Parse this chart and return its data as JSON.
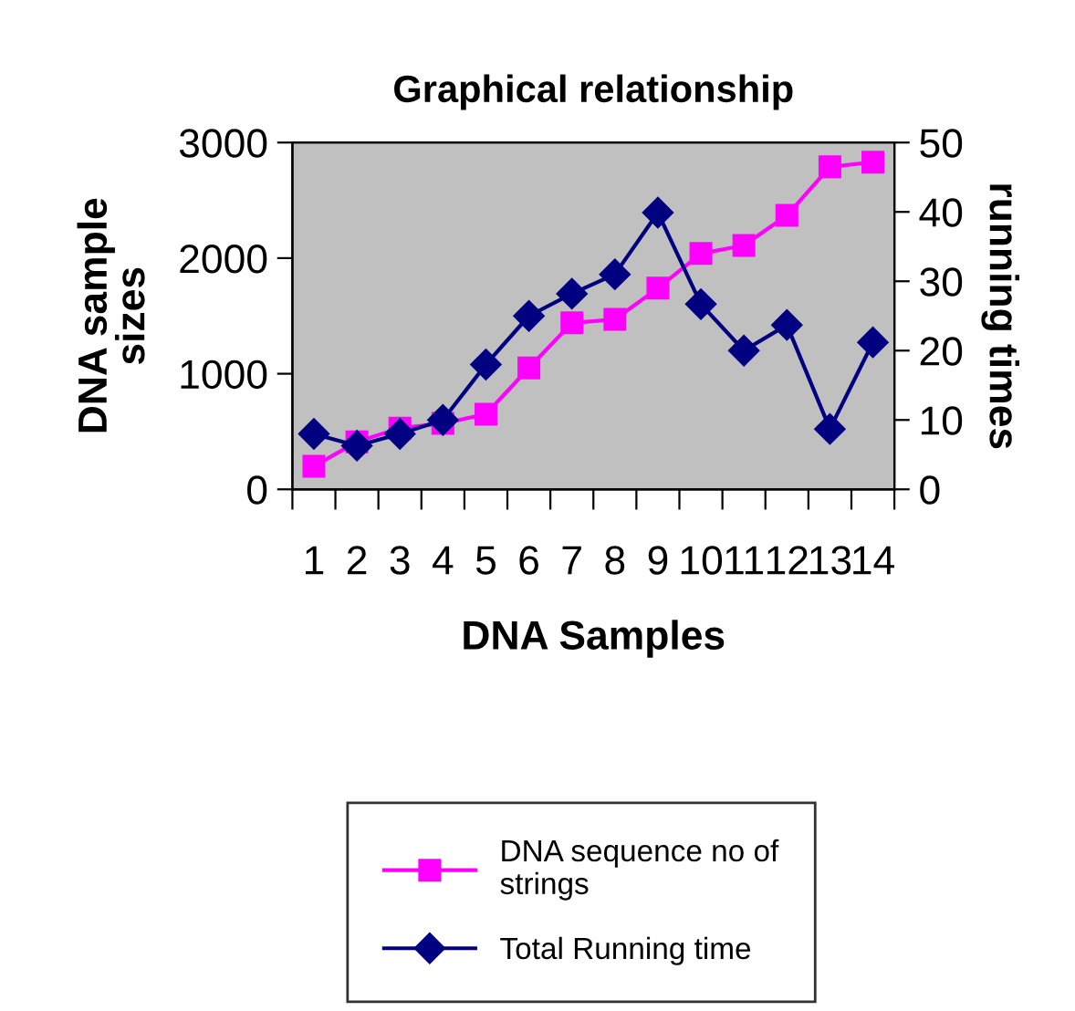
{
  "chart_data": {
    "type": "line",
    "title": "Graphical relationship",
    "xlabel": "DNA Samples",
    "ylabel": "DNA sample\nsizes",
    "y2label": "running times",
    "categories": [
      "1",
      "2",
      "3",
      "4",
      "5",
      "6",
      "7",
      "8",
      "9",
      "10",
      "11",
      "12",
      "13",
      "14"
    ],
    "series": [
      {
        "name": "DNA sequence no of\nstrings",
        "color": "#ff00ff",
        "marker": "square",
        "values": [
          200,
          410,
          530,
          570,
          650,
          1050,
          1440,
          1470,
          1740,
          2040,
          2110,
          2370,
          2790,
          2830
        ]
      },
      {
        "name": "Total Running time",
        "color": "#000080",
        "marker": "diamond",
        "axis": "y2",
        "values": [
          8,
          6.3,
          8,
          10,
          18,
          25,
          28.2,
          31,
          39.9,
          26.7,
          20,
          23.7,
          8.7,
          21.2
        ]
      }
    ],
    "ylim": [
      0,
      3000
    ],
    "yticks": [
      0,
      1000,
      2000,
      3000
    ],
    "y2lim": [
      0,
      50
    ],
    "y2ticks": [
      0,
      10,
      20,
      30,
      40,
      50
    ],
    "grid": false,
    "legend": "bottom",
    "line_style": "solid"
  }
}
